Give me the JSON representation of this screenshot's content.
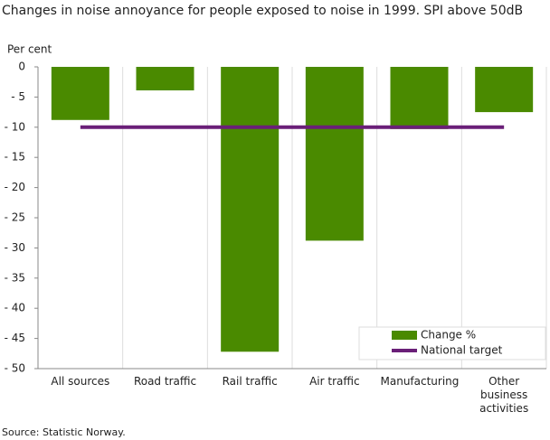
{
  "chart_data": {
    "type": "bar",
    "title": "Changes in noise annoyance for people exposed to noise in 1999. SPI above 50dB",
    "y_label": "Per cent",
    "source": "Source: Statistic Norway.",
    "categories": [
      "All sources",
      "Road traffic",
      "Rail traffic",
      "Air traffic",
      "Manufacturing",
      "Other business activities"
    ],
    "series": [
      {
        "name": "Change %",
        "color": "#4a8a00",
        "type": "bar",
        "values": [
          -8.8,
          -3.9,
          -47.2,
          -28.8,
          -10.3,
          -7.5
        ]
      },
      {
        "name": "National target",
        "color": "#6a1f78",
        "type": "line",
        "values": [
          -10,
          -10,
          -10,
          -10,
          -10,
          -10
        ]
      }
    ],
    "ylim": [
      -50,
      0
    ],
    "yticks": [
      0,
      {
        "value": -5,
        "label": "- 5"
      },
      {
        "value": -10,
        "label": "- 10"
      },
      {
        "value": -15,
        "label": "- 15"
      },
      {
        "value": -20,
        "label": "- 20"
      },
      {
        "value": -25,
        "label": "- 25"
      },
      {
        "value": -30,
        "label": "- 30"
      },
      {
        "value": -35,
        "label": "- 35"
      },
      {
        "value": -40,
        "label": "- 40"
      },
      {
        "value": -45,
        "label": "- 45"
      },
      {
        "value": -50,
        "label": "- 50"
      }
    ],
    "grid": true,
    "legend": "bottom-right"
  }
}
